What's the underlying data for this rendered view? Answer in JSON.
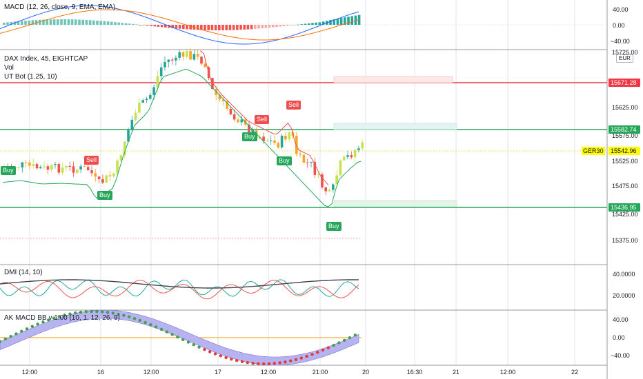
{
  "panes": {
    "macd": {
      "title": "MACD (12, 26, close, 9, EMA, EMA)",
      "axis": [
        "40.00",
        "0.00",
        "−40.00"
      ]
    },
    "main": {
      "title": "DAX Index, 45, EIGHTCAP",
      "vol": "Vol",
      "utbot": "UT Bot (1.25, 10)",
      "currency": "EUR",
      "axis": [
        "15725.00",
        "15625.00",
        "15575.00",
        "15525.00",
        "15475.00",
        "15425.00",
        "15375.00"
      ],
      "price_tags": [
        {
          "value": "15671.28",
          "color": "#f23645"
        },
        {
          "value": "15582.74",
          "color": "#26a65b"
        },
        {
          "value": "15542.96",
          "color": "#ffff00"
        },
        {
          "value": "15436.95",
          "color": "#26a65b"
        }
      ],
      "symbol_tag": "GER30",
      "signals": [
        {
          "type": "buy",
          "label": "Buy"
        },
        {
          "type": "sell",
          "label": "Sell"
        },
        {
          "type": "buy",
          "label": "Buy"
        },
        {
          "type": "buy",
          "label": "Buy"
        },
        {
          "type": "sell",
          "label": "Sell"
        },
        {
          "type": "buy",
          "label": "Buy"
        },
        {
          "type": "sell",
          "label": "Sell"
        },
        {
          "type": "buy",
          "label": "Buy"
        }
      ]
    },
    "dmi": {
      "title": "DMI (14, 10)",
      "axis": [
        "40.0000",
        "20.0000"
      ]
    },
    "akmacd": {
      "title": "AK MACD BB v 1.00 (10, 1, 12, 26, 9)",
      "axis": [
        "40.00",
        "0.00",
        "−40.00"
      ]
    }
  },
  "time_axis": [
    "12:00",
    "16",
    "12:00",
    "17",
    "12:00",
    "21:00",
    "20",
    "16:30",
    "21",
    "12:00",
    "22"
  ],
  "colors": {
    "up": "#26a69a",
    "down": "#ef5350",
    "doji_up": "#c6e24d",
    "buy": "#26a65b",
    "sell": "#ef4d4d",
    "grid": "#e0e3eb"
  }
}
